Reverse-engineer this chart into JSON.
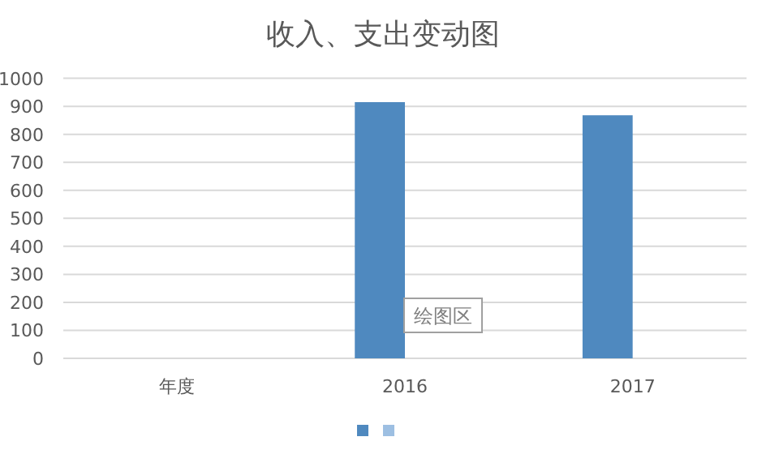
{
  "chart_data": {
    "type": "bar",
    "title": "收入、支出变动图",
    "categories": [
      "年度",
      "2016",
      "2017"
    ],
    "series": [
      {
        "color": "#4f89bf",
        "values": [
          null,
          915,
          868
        ]
      },
      {
        "color": "#9dbfe2",
        "values": [
          null,
          null,
          null
        ]
      }
    ],
    "ylim": [
      0,
      1000
    ],
    "yticks": [
      0,
      100,
      200,
      300,
      400,
      500,
      600,
      700,
      800,
      900,
      1000
    ],
    "grid": "y",
    "annotations": [
      "绘图区"
    ]
  }
}
